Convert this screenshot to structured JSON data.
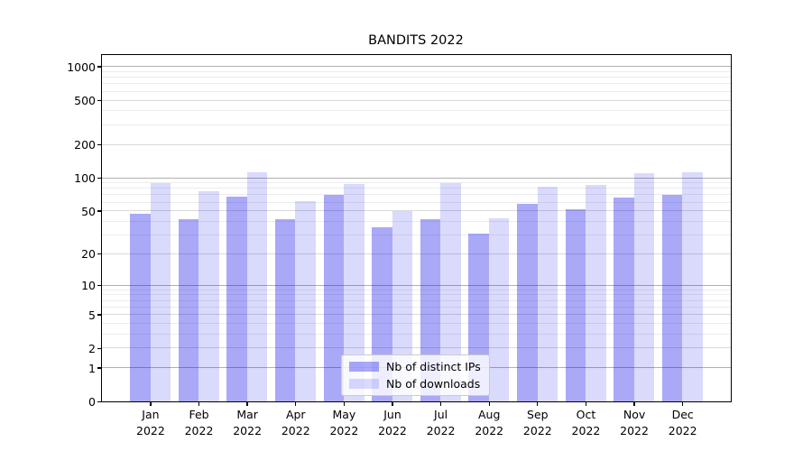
{
  "chart_data": {
    "type": "bar",
    "title": "BANDITS 2022",
    "categories": [
      "Jan 2022",
      "Feb 2022",
      "Mar 2022",
      "Apr 2022",
      "May 2022",
      "Jun 2022",
      "Jul 2022",
      "Aug 2022",
      "Sep 2022",
      "Oct 2022",
      "Nov 2022",
      "Dec 2022"
    ],
    "series": [
      {
        "name": "Nb of distinct IPs",
        "color": "rgba(10,10,235,0.35)",
        "values": [
          47,
          42,
          67,
          42,
          70,
          35,
          42,
          31,
          58,
          52,
          66,
          70
        ]
      },
      {
        "name": "Nb of downloads",
        "color": "rgba(10,10,235,0.15)",
        "values": [
          90,
          75,
          113,
          61,
          87,
          50,
          90,
          43,
          83,
          86,
          111,
          113
        ]
      }
    ],
    "xlabel": "",
    "ylabel": "",
    "yscale": "symlog-log1p",
    "yticks": [
      0,
      1,
      2,
      5,
      10,
      20,
      50,
      100,
      200,
      500,
      1000
    ],
    "yticks_minor": [
      3,
      4,
      6,
      7,
      8,
      9,
      30,
      40,
      60,
      70,
      80,
      90,
      300,
      400,
      600,
      700,
      800,
      900
    ],
    "ylim": [
      0,
      1270
    ],
    "grid": "on",
    "legend_position": "lower center"
  },
  "colors": {
    "grid_major": "#b0b0b0",
    "grid_mid": "#d9d9d9",
    "grid_minor": "#ececec",
    "spine": "#000000",
    "legend_border": "#cccccc",
    "text": "#000000",
    "background": "#ffffff"
  }
}
